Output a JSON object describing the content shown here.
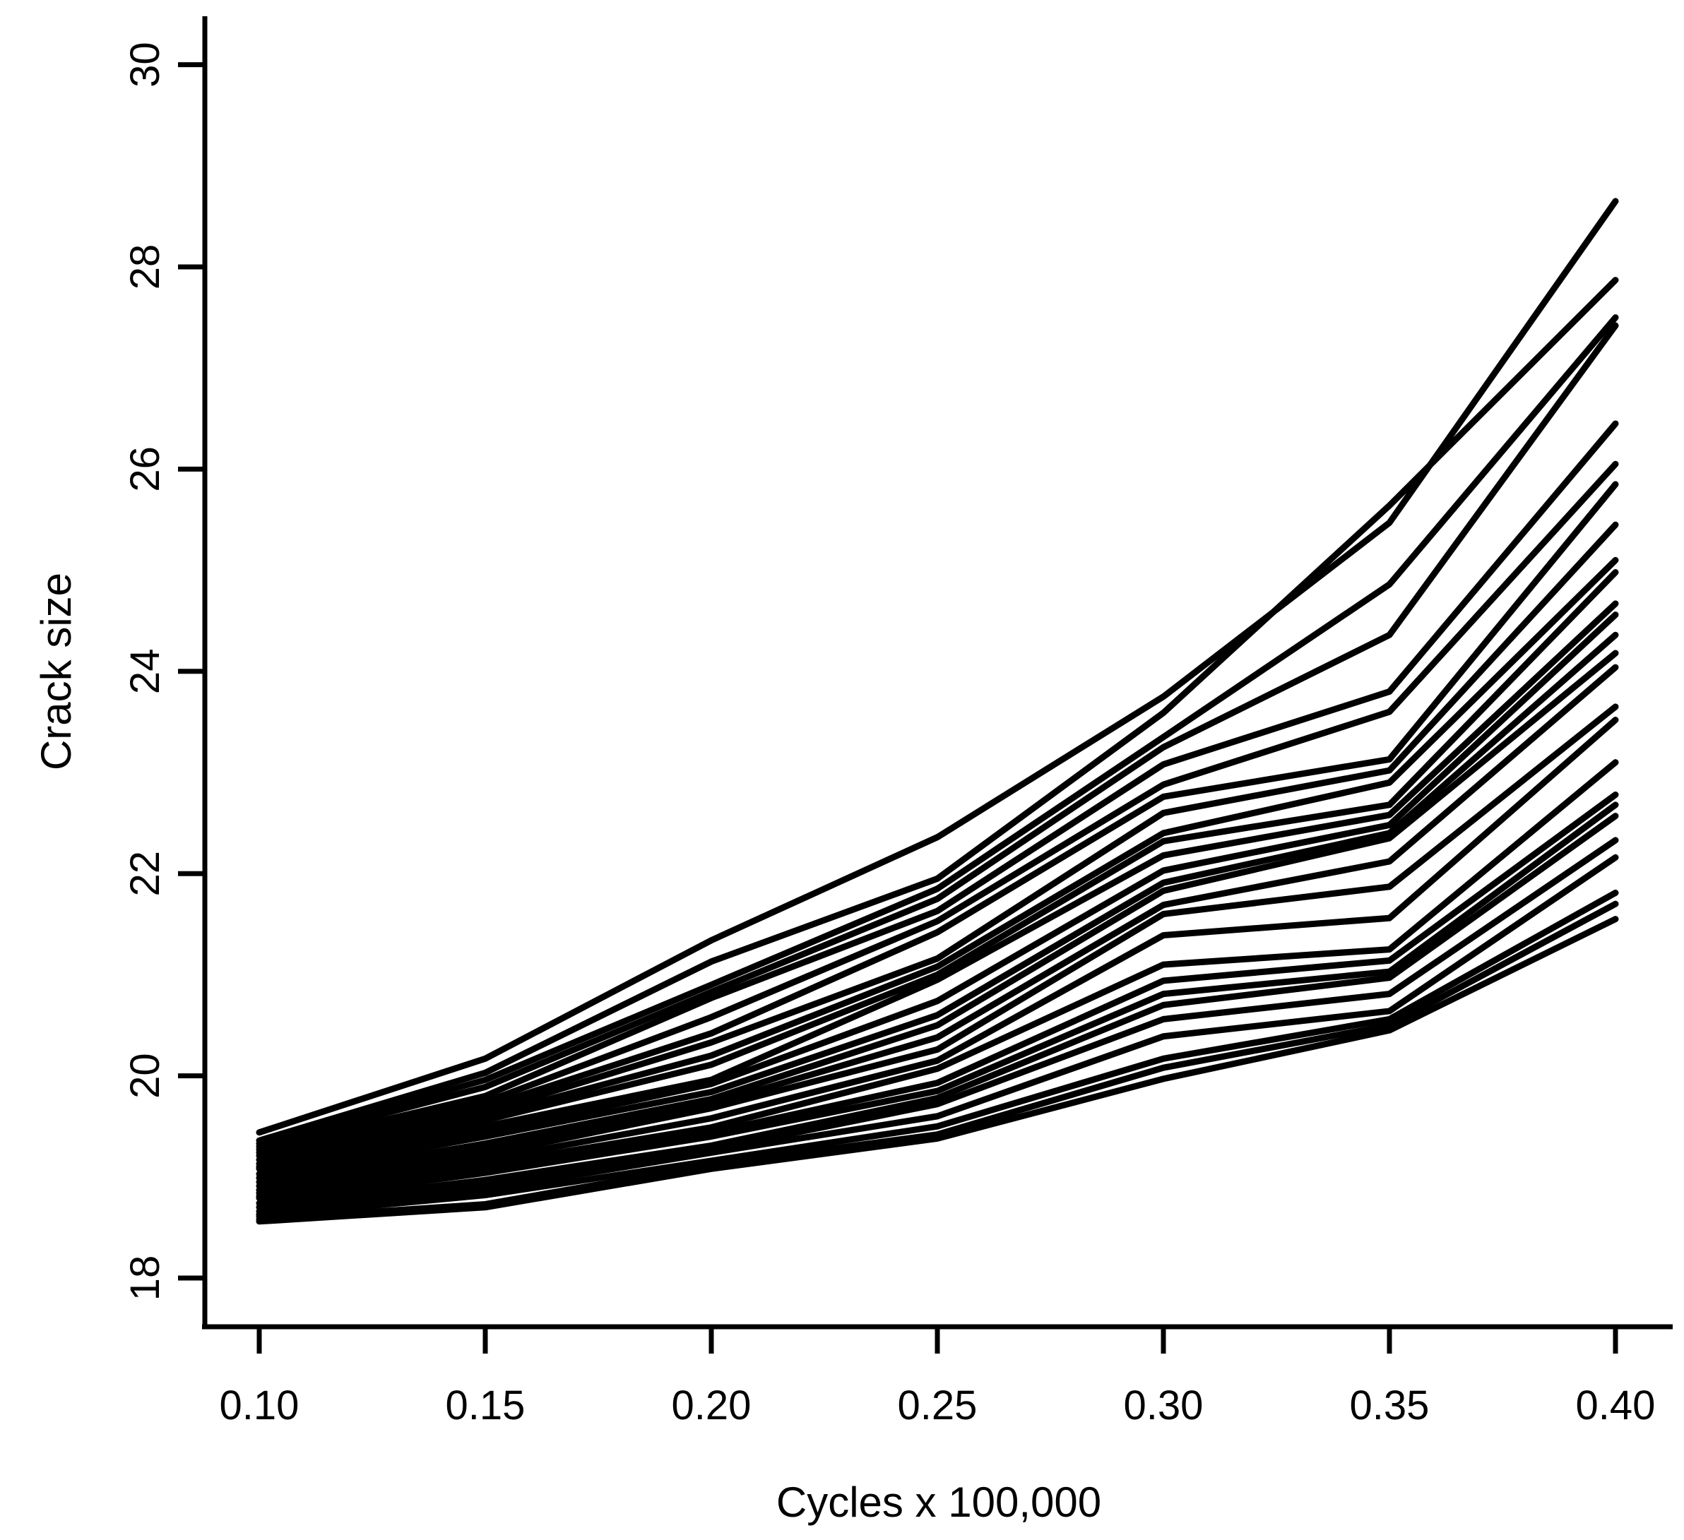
{
  "figure": {
    "background_color": "#ffffff",
    "line_color": "#000000",
    "xlabel": "Cycles x 100,000",
    "ylabel": "Crack size"
  },
  "chart_data": {
    "type": "line",
    "title": "",
    "xlabel": "Cycles x 100,000",
    "ylabel": "Crack size",
    "grid": false,
    "legend": false,
    "xlim": [
      0.1,
      0.4
    ],
    "ylim": [
      17.5,
      30.5
    ],
    "x_tick_labels": [
      "0.10",
      "0.15",
      "0.20",
      "0.25",
      "0.30",
      "0.35",
      "0.40"
    ],
    "y_tick_labels": [
      "18",
      "20",
      "22",
      "24",
      "26",
      "28",
      "30"
    ],
    "x": [
      0.1,
      0.15,
      0.2,
      0.25,
      0.3,
      0.35,
      0.4
    ],
    "series": [
      {
        "name": "path-1",
        "values": [
          19.44,
          20.17,
          21.34,
          22.36,
          23.75,
          25.47,
          28.65
        ]
      },
      {
        "name": "path-2",
        "values": [
          19.36,
          20.03,
          21.13,
          21.95,
          23.59,
          25.64,
          27.87
        ]
      },
      {
        "name": "path-3",
        "values": [
          19.33,
          19.96,
          20.9,
          21.85,
          23.35,
          24.86,
          27.5
        ]
      },
      {
        "name": "path-4",
        "values": [
          19.3,
          19.89,
          20.83,
          21.75,
          23.25,
          24.36,
          27.42
        ]
      },
      {
        "name": "path-5",
        "values": [
          19.27,
          19.8,
          20.77,
          21.63,
          23.08,
          23.8,
          26.45
        ]
      },
      {
        "name": "path-6",
        "values": [
          19.24,
          19.74,
          20.58,
          21.53,
          22.88,
          23.6,
          26.05
        ]
      },
      {
        "name": "path-7",
        "values": [
          19.21,
          19.69,
          20.42,
          21.42,
          22.76,
          23.13,
          25.85
        ]
      },
      {
        "name": "path-8",
        "values": [
          19.17,
          19.64,
          20.33,
          21.16,
          22.6,
          23.02,
          25.45
        ]
      },
      {
        "name": "path-9",
        "values": [
          19.13,
          19.6,
          20.2,
          21.08,
          22.4,
          22.9,
          25.1
        ]
      },
      {
        "name": "path-10",
        "values": [
          19.1,
          19.56,
          20.11,
          21.0,
          22.32,
          22.68,
          24.98
        ]
      },
      {
        "name": "path-11",
        "values": [
          19.08,
          19.5,
          19.96,
          20.95,
          22.18,
          22.58,
          24.67
        ]
      },
      {
        "name": "path-12",
        "values": [
          19.03,
          19.44,
          19.92,
          20.74,
          22.03,
          22.48,
          24.56
        ]
      },
      {
        "name": "path-13",
        "values": [
          18.99,
          19.4,
          19.84,
          20.6,
          21.91,
          22.4,
          24.36
        ]
      },
      {
        "name": "path-14",
        "values": [
          18.95,
          19.33,
          19.77,
          20.5,
          21.83,
          22.35,
          24.18
        ]
      },
      {
        "name": "path-15",
        "values": [
          18.91,
          19.28,
          19.72,
          20.38,
          21.69,
          22.12,
          24.04
        ]
      },
      {
        "name": "path-16",
        "values": [
          18.87,
          19.22,
          19.68,
          20.26,
          21.6,
          21.87,
          23.65
        ]
      },
      {
        "name": "path-17",
        "values": [
          18.84,
          19.17,
          19.58,
          20.15,
          21.39,
          21.56,
          23.52
        ]
      },
      {
        "name": "path-18",
        "values": [
          18.81,
          19.12,
          19.49,
          20.07,
          21.1,
          21.25,
          23.1
        ]
      },
      {
        "name": "path-19",
        "values": [
          18.79,
          19.08,
          19.44,
          19.93,
          20.94,
          21.14,
          22.78
        ]
      },
      {
        "name": "path-20",
        "values": [
          18.74,
          19.04,
          19.4,
          19.85,
          20.81,
          21.03,
          22.68
        ]
      },
      {
        "name": "path-21",
        "values": [
          18.7,
          18.97,
          19.31,
          19.78,
          20.7,
          20.97,
          22.57
        ]
      },
      {
        "name": "path-22",
        "values": [
          18.66,
          18.92,
          19.27,
          19.72,
          20.56,
          20.81,
          22.33
        ]
      },
      {
        "name": "path-23",
        "values": [
          18.63,
          18.87,
          19.24,
          19.6,
          20.39,
          20.64,
          22.16
        ]
      },
      {
        "name": "path-24",
        "values": [
          18.61,
          18.82,
          19.16,
          19.5,
          20.17,
          20.56,
          21.81
        ]
      },
      {
        "name": "path-25",
        "values": [
          18.58,
          18.73,
          19.12,
          19.42,
          20.08,
          20.5,
          21.7
        ]
      },
      {
        "name": "path-26",
        "values": [
          18.56,
          18.7,
          19.08,
          19.38,
          19.97,
          20.45,
          21.55
        ]
      }
    ]
  }
}
